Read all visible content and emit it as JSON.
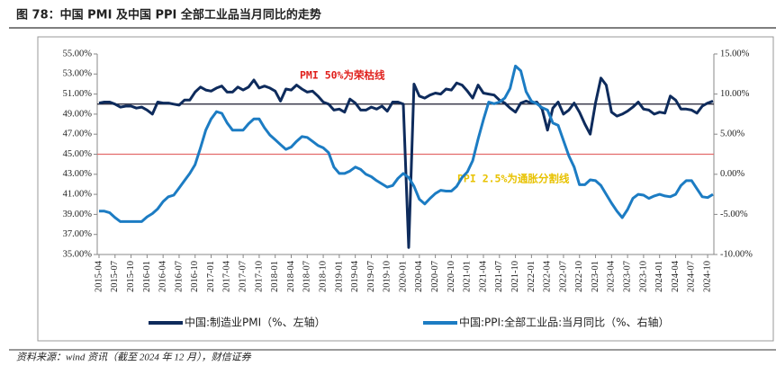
{
  "chart_data": {
    "type": "line",
    "title": "图 78：中国 PMI 及中国 PPI 全部工业品当月同比的走势",
    "source": "资料来源：wind 资讯（截至 2024 年 12 月），财信证券",
    "categories": [
      "2015-04",
      null,
      null,
      "2015-07",
      null,
      null,
      "2015-10",
      null,
      null,
      "2016-01",
      null,
      null,
      "2016-04",
      null,
      null,
      "2016-07",
      null,
      null,
      "2016-10",
      null,
      null,
      "2017-01",
      null,
      null,
      "2017-04",
      null,
      null,
      "2017-07",
      null,
      null,
      "2017-10",
      null,
      null,
      "2018-01",
      null,
      null,
      "2018-04",
      null,
      null,
      "2018-07",
      null,
      null,
      "2018-10",
      null,
      null,
      "2019-01",
      null,
      null,
      "2019-04",
      null,
      null,
      "2019-07",
      null,
      null,
      "2019-10",
      null,
      null,
      "2020-01",
      null,
      null,
      "2020-04",
      null,
      null,
      "2020-07",
      null,
      null,
      "2020-10",
      null,
      null,
      "2021-01",
      null,
      null,
      "2021-04",
      null,
      null,
      "2021-07",
      null,
      null,
      "2021-10",
      null,
      null,
      "2022-01",
      null,
      null,
      "2022-04",
      null,
      null,
      "2022-07",
      null,
      null,
      "2022-10",
      null,
      null,
      "2023-01",
      null,
      null,
      "2023-04",
      null,
      null,
      "2023-07",
      null,
      null,
      "2023-10",
      null,
      null,
      "2024-01",
      null,
      null,
      "2024-04",
      null,
      null,
      "2024-07",
      null,
      null,
      "2024-10",
      null
    ],
    "series": [
      {
        "name": "中国:制造业PMI（%、左轴）",
        "color": "#0e2b5c",
        "axis": "y",
        "values": [
          50.1,
          50.2,
          50.2,
          50.0,
          49.7,
          49.8,
          49.8,
          49.6,
          49.7,
          49.4,
          49.0,
          50.2,
          50.1,
          50.1,
          50.0,
          49.9,
          50.4,
          50.4,
          51.2,
          51.7,
          51.4,
          51.3,
          51.6,
          51.8,
          51.2,
          51.2,
          51.7,
          51.4,
          51.7,
          52.4,
          51.6,
          51.8,
          51.6,
          51.3,
          50.3,
          51.5,
          51.4,
          51.9,
          51.5,
          51.2,
          51.3,
          50.8,
          50.2,
          50.0,
          49.4,
          49.5,
          49.2,
          50.5,
          50.1,
          49.4,
          49.4,
          49.7,
          49.5,
          49.8,
          49.3,
          50.2,
          50.2,
          50.0,
          35.7,
          52.0,
          50.8,
          50.6,
          50.9,
          51.1,
          51.0,
          51.5,
          51.4,
          52.1,
          51.9,
          51.3,
          50.6,
          51.9,
          51.1,
          51.0,
          50.9,
          50.4,
          50.1,
          49.6,
          49.2,
          50.1,
          50.3,
          50.1,
          50.2,
          49.5,
          47.4,
          49.6,
          50.2,
          49.0,
          49.4,
          50.1,
          49.2,
          48.0,
          47.0,
          50.1,
          52.6,
          51.9,
          49.2,
          48.8,
          49.0,
          49.3,
          49.7,
          50.2,
          49.5,
          49.4,
          49.0,
          49.2,
          49.1,
          50.8,
          50.4,
          49.5,
          49.5,
          49.4,
          49.1,
          49.8,
          50.1,
          50.3
        ]
      },
      {
        "name": "中国:PPI:全部工业品:当月同比（%、右轴）",
        "color": "#1c7cc3",
        "axis": "y2",
        "values": [
          -4.6,
          -4.6,
          -4.8,
          -5.4,
          -5.9,
          -5.9,
          -5.9,
          -5.9,
          -5.9,
          -5.3,
          -4.9,
          -4.3,
          -3.4,
          -2.8,
          -2.6,
          -1.7,
          -0.8,
          0.1,
          1.2,
          3.3,
          5.5,
          6.9,
          7.8,
          7.6,
          6.4,
          5.5,
          5.5,
          5.5,
          6.3,
          6.9,
          6.9,
          5.8,
          4.9,
          4.3,
          3.7,
          3.1,
          3.4,
          4.1,
          4.7,
          4.6,
          4.1,
          3.6,
          3.3,
          2.7,
          0.9,
          0.1,
          0.1,
          0.4,
          0.9,
          0.6,
          0.0,
          -0.3,
          -0.8,
          -1.2,
          -1.6,
          -1.4,
          -0.5,
          0.1,
          -0.4,
          -1.5,
          -3.1,
          -3.7,
          -3.0,
          -2.4,
          -2.0,
          -2.1,
          -2.1,
          -1.5,
          -0.4,
          0.3,
          1.7,
          4.4,
          6.8,
          9.0,
          8.8,
          9.0,
          9.5,
          10.7,
          13.5,
          12.9,
          10.3,
          9.1,
          8.8,
          8.3,
          8.0,
          6.4,
          6.1,
          4.2,
          2.3,
          0.9,
          -1.3,
          -1.3,
          -0.7,
          -0.8,
          -1.4,
          -2.5,
          -3.6,
          -4.6,
          -5.4,
          -4.4,
          -3.0,
          -2.5,
          -2.6,
          -3.0,
          -2.7,
          -2.5,
          -2.7,
          -2.8,
          -2.5,
          -1.4,
          -0.8,
          -0.8,
          -1.8,
          -2.8,
          -2.9,
          -2.5
        ]
      }
    ],
    "ylim": [
      35,
      55
    ],
    "yticks": [
      {
        "value": 35,
        "label": "35.00%"
      },
      {
        "value": 37,
        "label": "37.00%"
      },
      {
        "value": 39,
        "label": "39.00%"
      },
      {
        "value": 41,
        "label": "41.00%"
      },
      {
        "value": 43,
        "label": "43.00%"
      },
      {
        "value": 45,
        "label": "45.00%"
      },
      {
        "value": 47,
        "label": "47.00%"
      },
      {
        "value": 49,
        "label": "49.00%"
      },
      {
        "value": 51,
        "label": "51.00%"
      },
      {
        "value": 53,
        "label": "53.00%"
      },
      {
        "value": 55,
        "label": "55.00%"
      }
    ],
    "y2lim": [
      -10,
      15
    ],
    "y2ticks": [
      {
        "value": -10,
        "label": "-10.00%"
      },
      {
        "value": -5,
        "label": "-5.00%"
      },
      {
        "value": 0,
        "label": "0.00%"
      },
      {
        "value": 5,
        "label": "5.00%"
      },
      {
        "value": 10,
        "label": "10.00%"
      },
      {
        "value": 15,
        "label": "15.00%"
      }
    ],
    "reference_lines": [
      {
        "axis": "y",
        "value": 50,
        "color": "#1a1a2e",
        "label": "PMI 50%为荣枯线",
        "label_color": "#e0201c"
      },
      {
        "axis": "y2",
        "value": 2.5,
        "color": "#e36b6b",
        "label": "PPI 2.5%为通胀分割线",
        "label_color": "#e8c200"
      }
    ],
    "legend": "bottom"
  }
}
